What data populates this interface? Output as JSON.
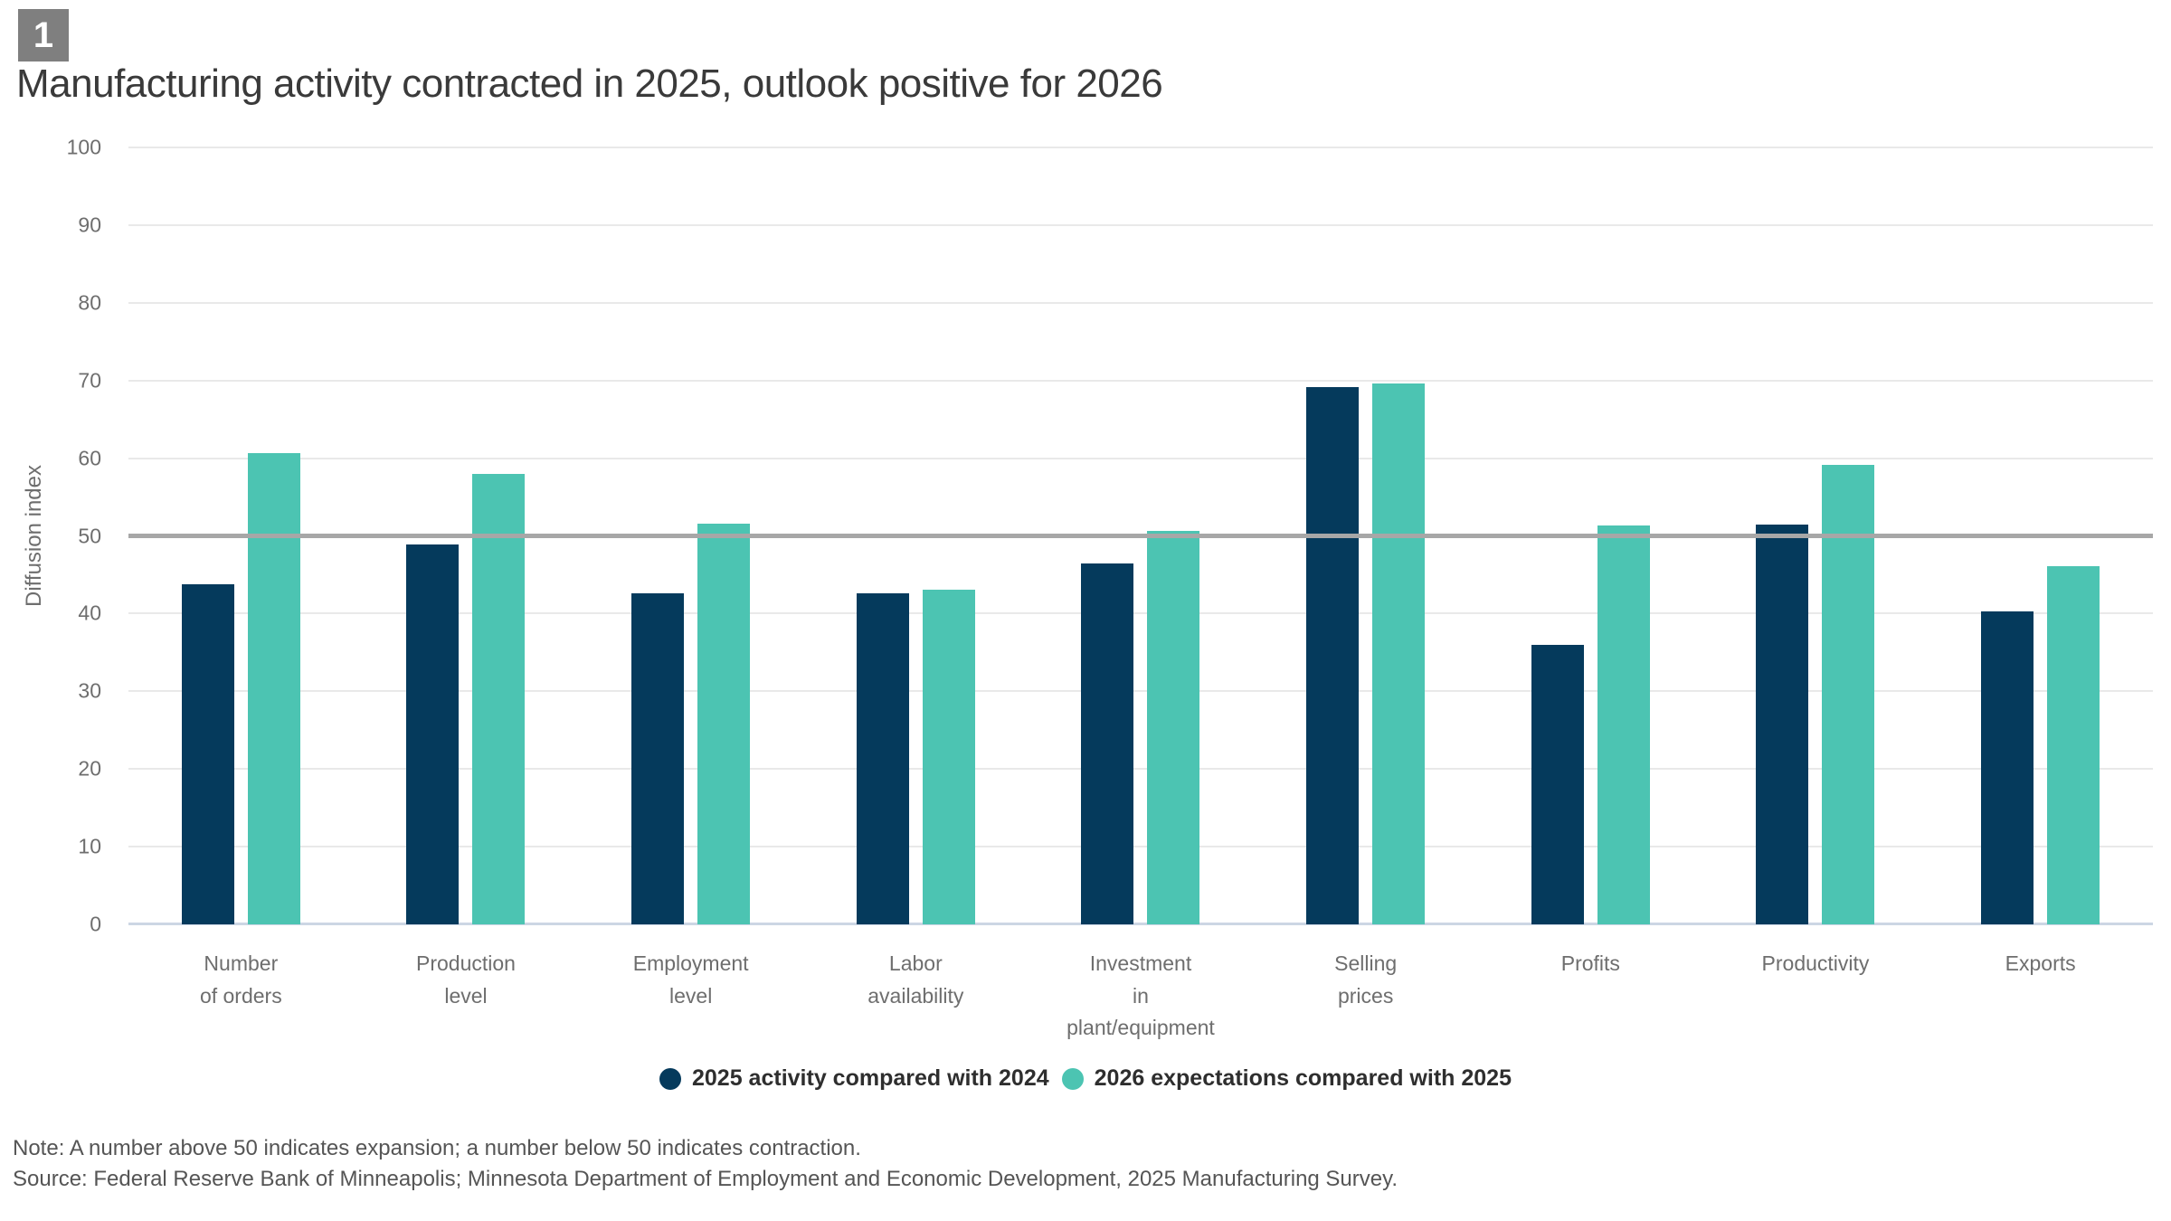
{
  "figure": {
    "badge": "1"
  },
  "title": "Manufacturing activity contracted in 2025, outlook positive for 2026",
  "chart_data": {
    "type": "bar",
    "title": "Manufacturing activity contracted in 2025, outlook positive for 2026",
    "ylabel": "Diffusion index",
    "xlabel": "",
    "ylim": [
      0,
      100
    ],
    "ytick_step": 10,
    "grid": true,
    "reference_line": {
      "value": 50,
      "meaning": "A number above 50 indicates expansion; a number below 50 indicates contraction."
    },
    "legend_position": "bottom-center",
    "categories": [
      "Number\nof orders",
      "Production\nlevel",
      "Employment\nlevel",
      "Labor\navailability",
      "Investment\nin\nplant/equipment",
      "Selling\nprices",
      "Profits",
      "Productivity",
      "Exports"
    ],
    "series": [
      {
        "name": "2025 activity compared with 2024",
        "color": "#053a5c",
        "values": [
          43.8,
          48.9,
          42.6,
          42.6,
          46.5,
          69.1,
          36.0,
          51.5,
          40.3
        ]
      },
      {
        "name": "2026 expectations compared with 2025",
        "color": "#4cc4b2",
        "values": [
          60.7,
          58.0,
          51.6,
          43.1,
          50.6,
          69.6,
          51.3,
          59.1,
          46.1
        ]
      }
    ]
  },
  "notes": {
    "note": "Note: A number above 50 indicates expansion; a number below 50 indicates contraction.",
    "source": "Source: Federal Reserve Bank of Minneapolis; Minnesota Department of Employment and Economic Development, 2025 Manufacturing Survey."
  },
  "colors": {
    "badge_bg": "#7f7f7f",
    "badge_text": "#ffffff",
    "gridline": "#e9e9e9",
    "baseline": "#ccd6e4",
    "reference_line": "#a7a7a7",
    "series_2025": "#053a5c",
    "series_2026": "#4cc4b2"
  }
}
